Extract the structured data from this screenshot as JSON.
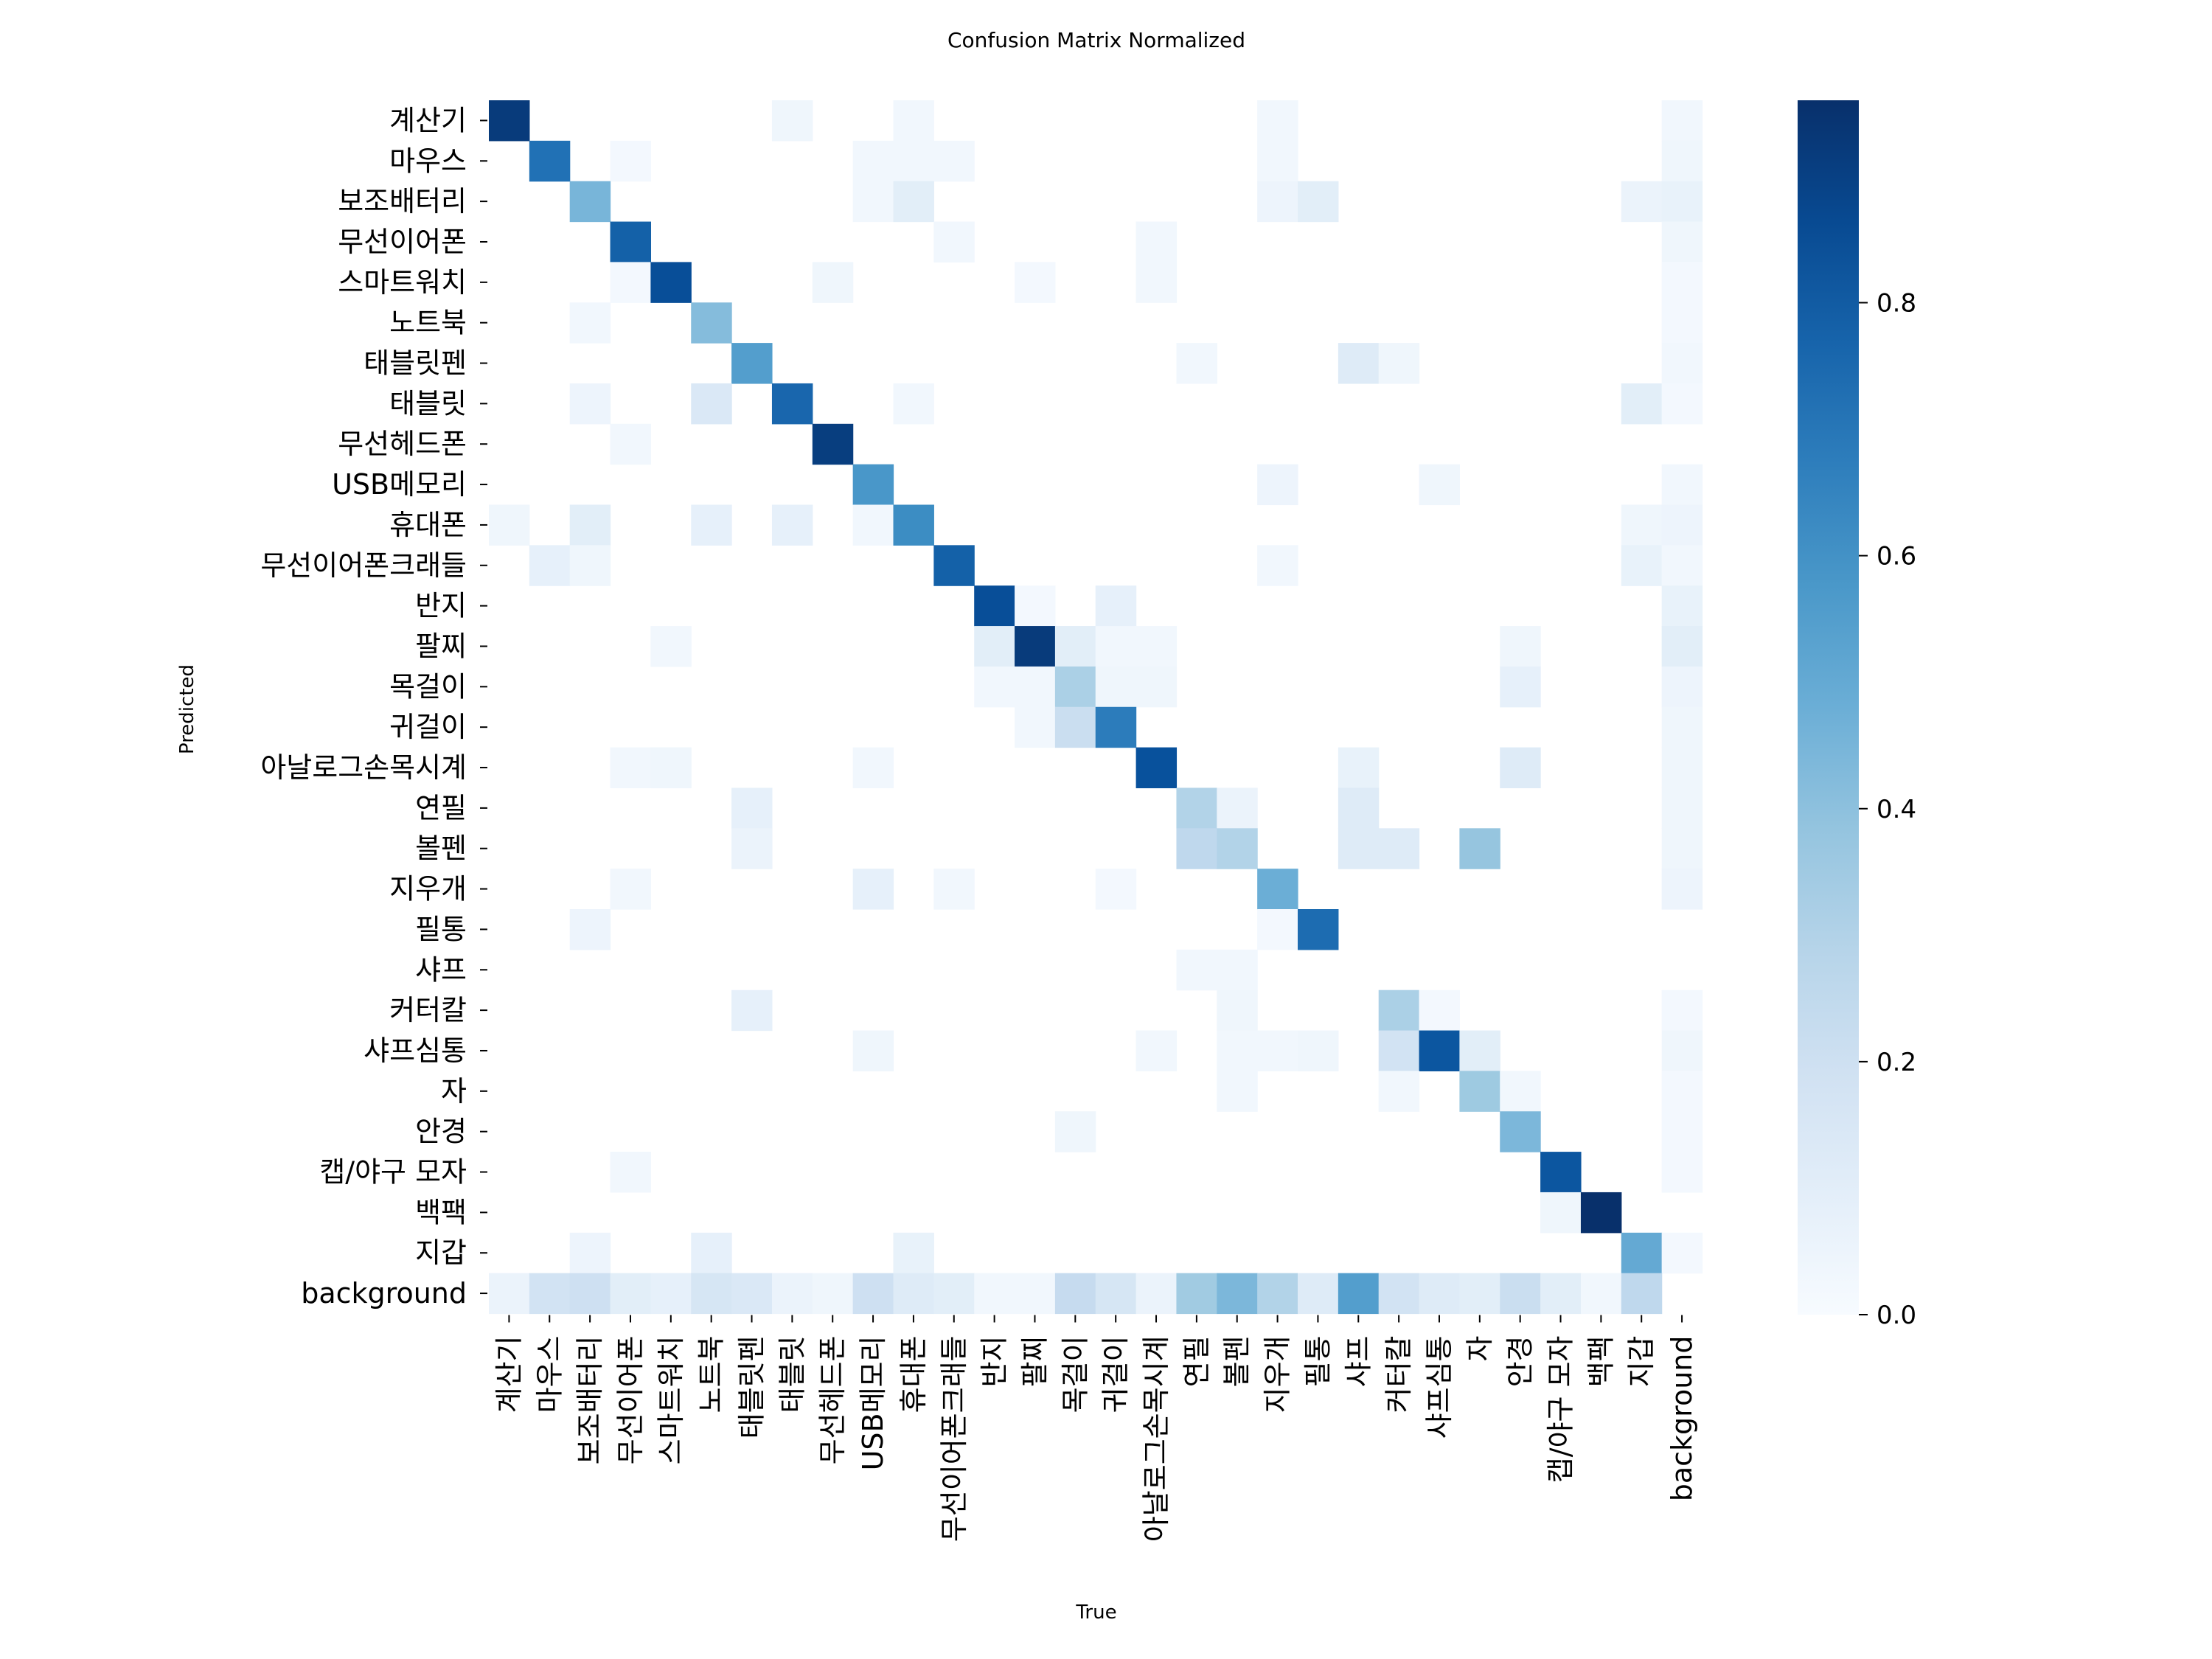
{
  "chart_data": {
    "type": "heatmap",
    "title": "Confusion Matrix Normalized",
    "xlabel": "True",
    "ylabel": "Predicted",
    "labels": [
      "계산기",
      "마우스",
      "보조배터리",
      "무선이어폰",
      "스마트워치",
      "노트북",
      "태블릿펜",
      "태블릿",
      "무선헤드폰",
      "USB메모리",
      "휴대폰",
      "무선이어폰크래들",
      "반지",
      "팔찌",
      "목걸이",
      "귀걸이",
      "아날로그손목시계",
      "연필",
      "볼펜",
      "지우개",
      "필통",
      "샤프",
      "커터칼",
      "샤프심통",
      "자",
      "안경",
      "캡/야구 모자",
      "백팩",
      "지갑",
      "background"
    ],
    "colorbar": {
      "min": 0.0,
      "max": 0.96,
      "ticks": [
        "0.0",
        "0.2",
        "0.4",
        "0.6",
        "0.8"
      ]
    },
    "cells": [
      [
        0,
        0,
        0.92
      ],
      [
        0,
        7,
        0.04
      ],
      [
        0,
        10,
        0.03
      ],
      [
        0,
        19,
        0.03
      ],
      [
        0,
        29,
        0.03
      ],
      [
        1,
        1,
        0.72
      ],
      [
        1,
        3,
        0.02
      ],
      [
        1,
        9,
        0.03
      ],
      [
        1,
        10,
        0.03
      ],
      [
        1,
        11,
        0.03
      ],
      [
        1,
        19,
        0.03
      ],
      [
        1,
        29,
        0.04
      ],
      [
        2,
        2,
        0.45
      ],
      [
        2,
        9,
        0.03
      ],
      [
        2,
        10,
        0.1
      ],
      [
        2,
        19,
        0.05
      ],
      [
        2,
        20,
        0.1
      ],
      [
        2,
        28,
        0.06
      ],
      [
        2,
        29,
        0.07
      ],
      [
        3,
        3,
        0.78
      ],
      [
        3,
        11,
        0.03
      ],
      [
        3,
        16,
        0.03
      ],
      [
        3,
        29,
        0.04
      ],
      [
        4,
        3,
        0.02
      ],
      [
        4,
        4,
        0.85
      ],
      [
        4,
        8,
        0.04
      ],
      [
        4,
        13,
        0.02
      ],
      [
        4,
        16,
        0.03
      ],
      [
        4,
        29,
        0.02
      ],
      [
        5,
        2,
        0.03
      ],
      [
        5,
        5,
        0.42
      ],
      [
        5,
        29,
        0.02
      ],
      [
        6,
        6,
        0.55
      ],
      [
        6,
        17,
        0.03
      ],
      [
        6,
        21,
        0.12
      ],
      [
        6,
        22,
        0.04
      ],
      [
        6,
        29,
        0.03
      ],
      [
        7,
        2,
        0.05
      ],
      [
        7,
        5,
        0.14
      ],
      [
        7,
        7,
        0.76
      ],
      [
        7,
        10,
        0.03
      ],
      [
        7,
        28,
        0.1
      ],
      [
        7,
        29,
        0.02
      ],
      [
        8,
        3,
        0.03
      ],
      [
        8,
        8,
        0.91
      ],
      [
        9,
        9,
        0.58
      ],
      [
        9,
        19,
        0.05
      ],
      [
        9,
        23,
        0.04
      ],
      [
        9,
        29,
        0.03
      ],
      [
        10,
        0,
        0.04
      ],
      [
        10,
        2,
        0.1
      ],
      [
        10,
        5,
        0.08
      ],
      [
        10,
        7,
        0.08
      ],
      [
        10,
        9,
        0.03
      ],
      [
        10,
        10,
        0.62
      ],
      [
        10,
        28,
        0.04
      ],
      [
        10,
        29,
        0.05
      ],
      [
        11,
        1,
        0.08
      ],
      [
        11,
        2,
        0.04
      ],
      [
        11,
        11,
        0.78
      ],
      [
        11,
        19,
        0.03
      ],
      [
        11,
        28,
        0.07
      ],
      [
        11,
        29,
        0.03
      ],
      [
        12,
        12,
        0.85
      ],
      [
        12,
        13,
        0.02
      ],
      [
        12,
        15,
        0.08
      ],
      [
        12,
        29,
        0.07
      ],
      [
        13,
        4,
        0.03
      ],
      [
        13,
        12,
        0.1
      ],
      [
        13,
        13,
        0.92
      ],
      [
        13,
        14,
        0.1
      ],
      [
        13,
        15,
        0.03
      ],
      [
        13,
        16,
        0.03
      ],
      [
        13,
        25,
        0.04
      ],
      [
        13,
        29,
        0.1
      ],
      [
        14,
        12,
        0.03
      ],
      [
        14,
        13,
        0.03
      ],
      [
        14,
        14,
        0.32
      ],
      [
        14,
        15,
        0.04
      ],
      [
        14,
        16,
        0.04
      ],
      [
        14,
        25,
        0.08
      ],
      [
        14,
        29,
        0.05
      ],
      [
        15,
        13,
        0.03
      ],
      [
        15,
        14,
        0.22
      ],
      [
        15,
        15,
        0.68
      ],
      [
        15,
        29,
        0.04
      ],
      [
        16,
        3,
        0.03
      ],
      [
        16,
        4,
        0.04
      ],
      [
        16,
        9,
        0.03
      ],
      [
        16,
        16,
        0.84
      ],
      [
        16,
        21,
        0.07
      ],
      [
        16,
        25,
        0.12
      ],
      [
        16,
        29,
        0.04
      ],
      [
        17,
        6,
        0.08
      ],
      [
        17,
        17,
        0.3
      ],
      [
        17,
        18,
        0.06
      ],
      [
        17,
        21,
        0.12
      ],
      [
        17,
        29,
        0.04
      ],
      [
        18,
        6,
        0.06
      ],
      [
        18,
        17,
        0.26
      ],
      [
        18,
        18,
        0.3
      ],
      [
        18,
        21,
        0.12
      ],
      [
        18,
        22,
        0.12
      ],
      [
        18,
        24,
        0.38
      ],
      [
        18,
        29,
        0.04
      ],
      [
        19,
        3,
        0.03
      ],
      [
        19,
        9,
        0.08
      ],
      [
        19,
        11,
        0.03
      ],
      [
        19,
        15,
        0.02
      ],
      [
        19,
        19,
        0.48
      ],
      [
        19,
        29,
        0.05
      ],
      [
        20,
        2,
        0.05
      ],
      [
        20,
        19,
        0.02
      ],
      [
        20,
        20,
        0.74
      ],
      [
        21,
        17,
        0.03
      ],
      [
        21,
        18,
        0.03
      ],
      [
        22,
        6,
        0.08
      ],
      [
        22,
        18,
        0.04
      ],
      [
        22,
        22,
        0.32
      ],
      [
        22,
        23,
        0.02
      ],
      [
        22,
        29,
        0.02
      ],
      [
        23,
        9,
        0.04
      ],
      [
        23,
        16,
        0.03
      ],
      [
        23,
        18,
        0.03
      ],
      [
        23,
        19,
        0.03
      ],
      [
        23,
        20,
        0.04
      ],
      [
        23,
        22,
        0.18
      ],
      [
        23,
        23,
        0.82
      ],
      [
        23,
        24,
        0.1
      ],
      [
        23,
        29,
        0.04
      ],
      [
        24,
        18,
        0.03
      ],
      [
        24,
        22,
        0.03
      ],
      [
        24,
        24,
        0.36
      ],
      [
        24,
        25,
        0.03
      ],
      [
        24,
        29,
        0.02
      ],
      [
        25,
        14,
        0.04
      ],
      [
        25,
        25,
        0.44
      ],
      [
        25,
        29,
        0.02
      ],
      [
        26,
        3,
        0.03
      ],
      [
        26,
        26,
        0.82
      ],
      [
        26,
        29,
        0.02
      ],
      [
        27,
        26,
        0.04
      ],
      [
        27,
        27,
        0.96
      ],
      [
        28,
        2,
        0.05
      ],
      [
        28,
        5,
        0.08
      ],
      [
        28,
        10,
        0.07
      ],
      [
        28,
        28,
        0.5
      ],
      [
        28,
        29,
        0.02
      ],
      [
        29,
        0,
        0.06
      ],
      [
        29,
        1,
        0.18
      ],
      [
        29,
        2,
        0.2
      ],
      [
        29,
        3,
        0.1
      ],
      [
        29,
        4,
        0.08
      ],
      [
        29,
        5,
        0.16
      ],
      [
        29,
        6,
        0.14
      ],
      [
        29,
        7,
        0.06
      ],
      [
        29,
        8,
        0.04
      ],
      [
        29,
        9,
        0.2
      ],
      [
        29,
        10,
        0.12
      ],
      [
        29,
        11,
        0.1
      ],
      [
        29,
        12,
        0.03
      ],
      [
        29,
        13,
        0.03
      ],
      [
        29,
        14,
        0.24
      ],
      [
        29,
        15,
        0.16
      ],
      [
        29,
        16,
        0.06
      ],
      [
        29,
        17,
        0.35
      ],
      [
        29,
        18,
        0.44
      ],
      [
        29,
        19,
        0.3
      ],
      [
        29,
        20,
        0.12
      ],
      [
        29,
        21,
        0.55
      ],
      [
        29,
        22,
        0.18
      ],
      [
        29,
        23,
        0.12
      ],
      [
        29,
        24,
        0.1
      ],
      [
        29,
        25,
        0.22
      ],
      [
        29,
        26,
        0.1
      ],
      [
        29,
        27,
        0.03
      ],
      [
        29,
        28,
        0.26
      ]
    ]
  }
}
